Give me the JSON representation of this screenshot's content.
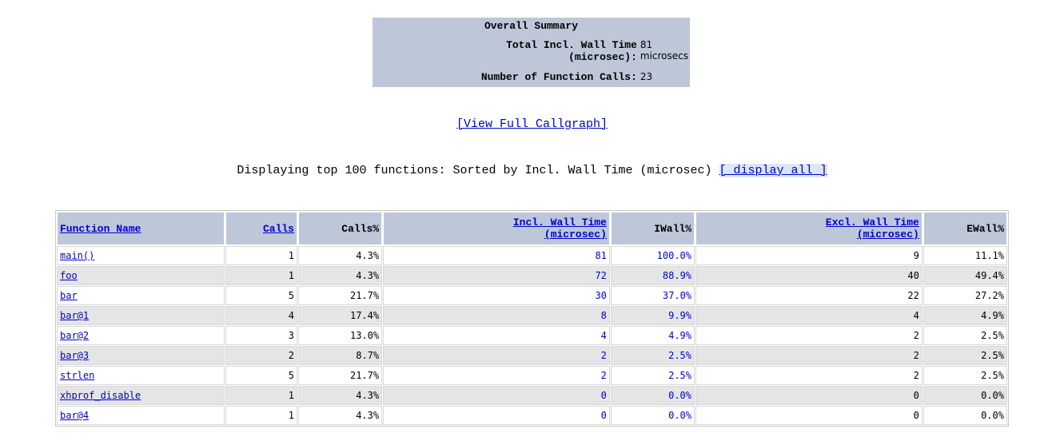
{
  "summary": {
    "title": "Overall Summary",
    "rows": [
      {
        "label": "Total Incl. Wall Time (microsec):",
        "value": "81 microsecs"
      },
      {
        "label": "Number of Function Calls:",
        "value": "23"
      }
    ]
  },
  "callgraph_link": "[View Full Callgraph]",
  "display_text": "Displaying top 100 functions: Sorted by Incl. Wall Time (microsec)",
  "display_all_link": "[ display all ]",
  "table": {
    "headers": [
      "Function Name",
      "Calls",
      "Calls%",
      "Incl. Wall Time (microsec)",
      "IWall%",
      "Excl. Wall Time (microsec)",
      "EWall%"
    ],
    "rows": [
      [
        "main()",
        "1",
        "4.3%",
        "81",
        "100.0%",
        "9",
        "11.1%"
      ],
      [
        "foo",
        "1",
        "4.3%",
        "72",
        "88.9%",
        "40",
        "49.4%"
      ],
      [
        "bar",
        "5",
        "21.7%",
        "30",
        "37.0%",
        "22",
        "27.2%"
      ],
      [
        "bar@1",
        "4",
        "17.4%",
        "8",
        "9.9%",
        "4",
        "4.9%"
      ],
      [
        "bar@2",
        "3",
        "13.0%",
        "4",
        "4.9%",
        "2",
        "2.5%"
      ],
      [
        "bar@3",
        "2",
        "8.7%",
        "2",
        "2.5%",
        "2",
        "2.5%"
      ],
      [
        "strlen",
        "5",
        "21.7%",
        "2",
        "2.5%",
        "2",
        "2.5%"
      ],
      [
        "xhprof_disable",
        "1",
        "4.3%",
        "0",
        "0.0%",
        "0",
        "0.0%"
      ],
      [
        "bar@4",
        "1",
        "4.3%",
        "0",
        "0.0%",
        "0",
        "0.0%"
      ]
    ]
  }
}
